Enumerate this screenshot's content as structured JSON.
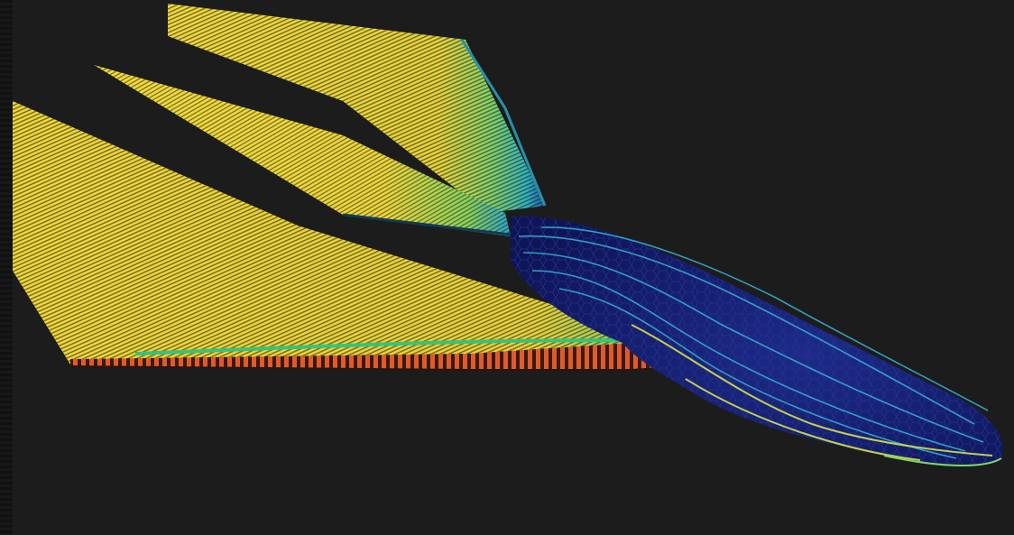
{
  "scene": {
    "description_free": true,
    "colors": {
      "background": "#1c1c1c",
      "low_shear": "#f2d83a",
      "mid_shear": "#3fd07a",
      "high_shear": "#e0542a",
      "body_surface": "#141a6e",
      "body_streak": "#35b8d6"
    },
    "icons": [
      "streamline-wing-upper",
      "streamline-wing-tail",
      "streamline-wing-lower",
      "fuselage-body"
    ]
  }
}
